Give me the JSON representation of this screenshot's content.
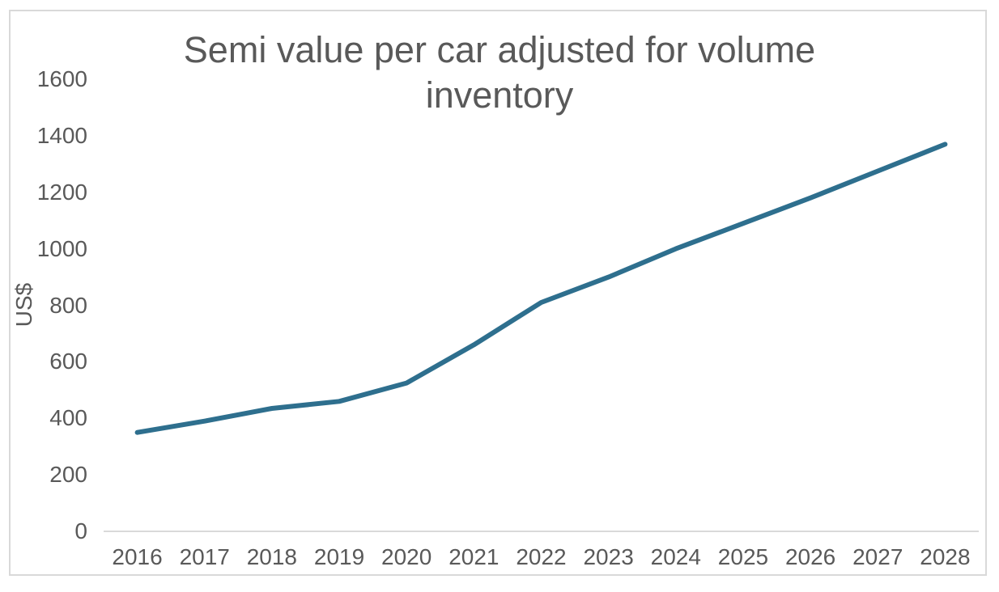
{
  "chart_data": {
    "type": "line",
    "title": "Semi value per car adjusted for volume inventory",
    "xlabel": "",
    "ylabel": "US$",
    "categories": [
      "2016",
      "2017",
      "2018",
      "2019",
      "2020",
      "2021",
      "2022",
      "2023",
      "2024",
      "2025",
      "2026",
      "2027",
      "2028"
    ],
    "values": [
      350,
      390,
      435,
      460,
      525,
      660,
      810,
      900,
      1000,
      1090,
      1180,
      1275,
      1370
    ],
    "ylim": [
      0,
      1600
    ],
    "y_ticks": [
      0,
      200,
      400,
      600,
      800,
      1000,
      1200,
      1400,
      1600
    ],
    "grid": false,
    "legend": false,
    "markers": false,
    "colors": {
      "line": "#2e6f8e",
      "axis": "#d9d9d9",
      "text": "#595959",
      "background": "#ffffff"
    }
  }
}
